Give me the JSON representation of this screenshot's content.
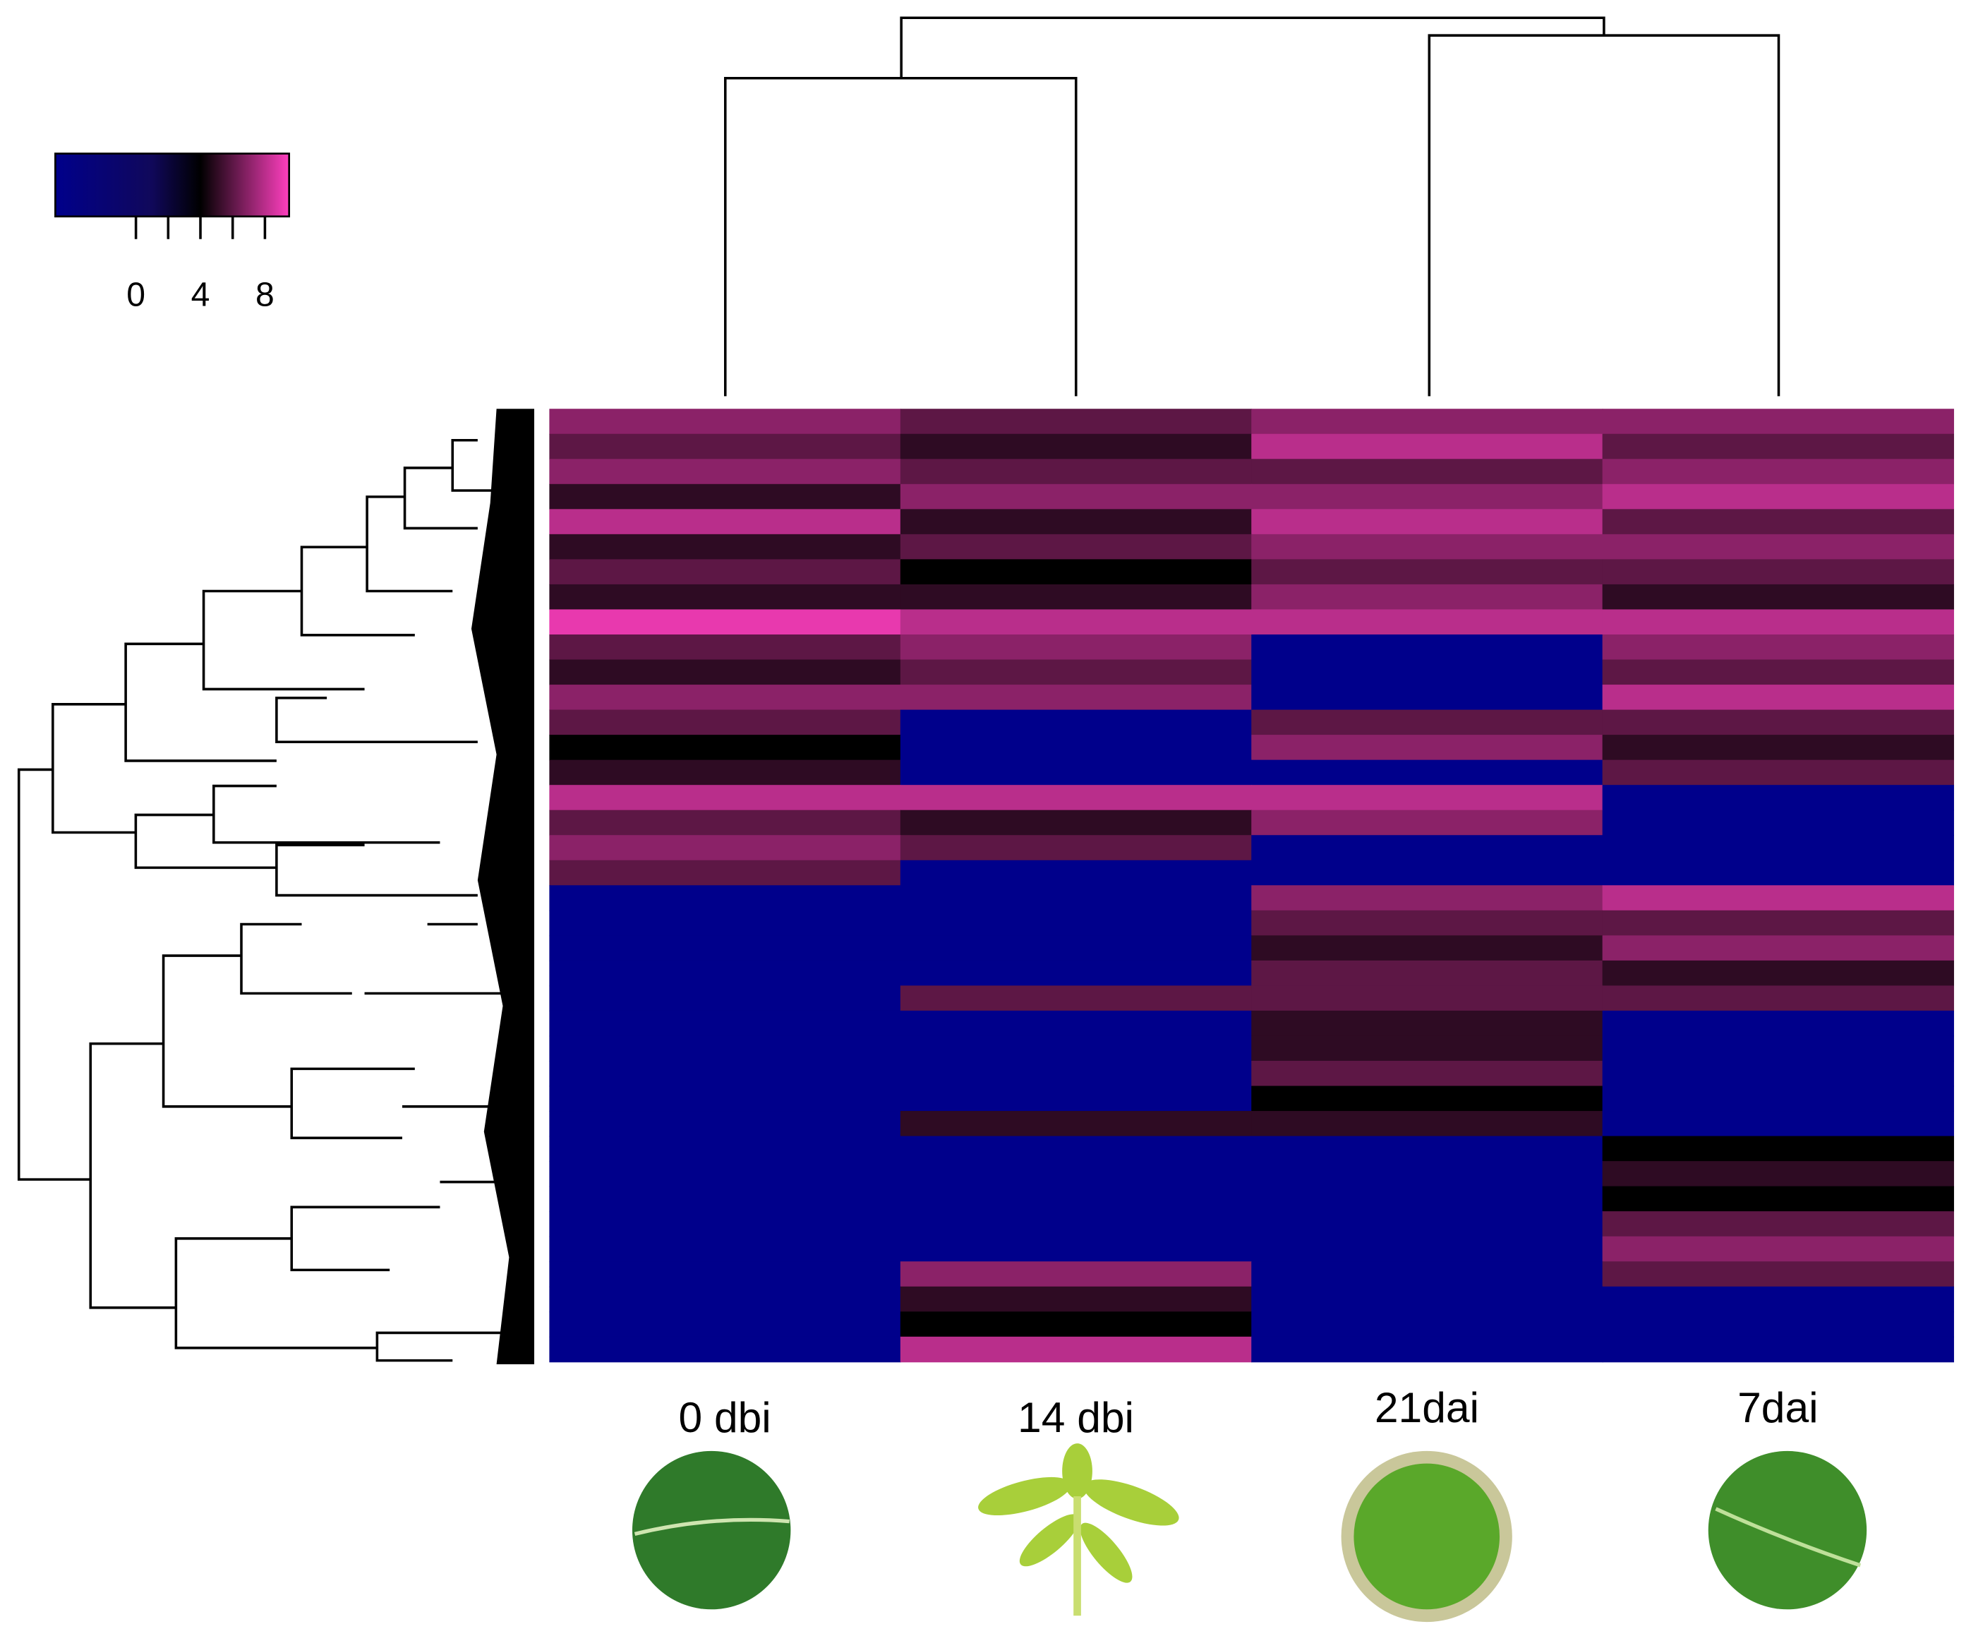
{
  "chart_data": {
    "type": "heatmap",
    "categories": [
      "0 dbi",
      "14 dbi",
      "21dai",
      "7dai"
    ],
    "values": [
      [
        7,
        6,
        7,
        7
      ],
      [
        6,
        5,
        8,
        6
      ],
      [
        7,
        6,
        6,
        7
      ],
      [
        5,
        7,
        7,
        8
      ],
      [
        8,
        5,
        8,
        6
      ],
      [
        5,
        6,
        7,
        7
      ],
      [
        6,
        4,
        6,
        6
      ],
      [
        5,
        5,
        7,
        5
      ],
      [
        9,
        8,
        8,
        8
      ],
      [
        6,
        7,
        -5,
        7
      ],
      [
        5,
        6,
        -5,
        6
      ],
      [
        7,
        7,
        -5,
        8
      ],
      [
        6,
        -5,
        6,
        6
      ],
      [
        4,
        -5,
        7,
        5
      ],
      [
        5,
        -5,
        -5,
        6
      ],
      [
        8,
        8,
        8,
        -5
      ],
      [
        6,
        5,
        7,
        -5
      ],
      [
        7,
        6,
        -5,
        -5
      ],
      [
        6,
        -5,
        -5,
        -5
      ],
      [
        -5,
        -5,
        7,
        8
      ],
      [
        -5,
        -5,
        6,
        6
      ],
      [
        -5,
        -5,
        5,
        7
      ],
      [
        -5,
        -5,
        6,
        5
      ],
      [
        -5,
        6,
        6,
        6
      ],
      [
        -5,
        -5,
        5,
        -5
      ],
      [
        -5,
        -5,
        5,
        -5
      ],
      [
        -5,
        -5,
        6,
        -5
      ],
      [
        -5,
        -5,
        4,
        -5
      ],
      [
        -5,
        5,
        5,
        -5
      ],
      [
        -5,
        -5,
        -5,
        4
      ],
      [
        -5,
        -5,
        -5,
        5
      ],
      [
        -5,
        -5,
        -5,
        4
      ],
      [
        -5,
        -5,
        -5,
        6
      ],
      [
        -5,
        -5,
        -5,
        7
      ],
      [
        -5,
        7,
        -5,
        6
      ],
      [
        -5,
        5,
        -5,
        -5
      ],
      [
        -5,
        4,
        -5,
        -5
      ],
      [
        -5,
        8,
        -5,
        -5
      ]
    ],
    "zlim": [
      -5,
      9.5
    ],
    "zticks": [
      0,
      4,
      8
    ],
    "colorscale": [
      {
        "value": -5,
        "color": "#00008b"
      },
      {
        "value": 1,
        "color": "#10085a"
      },
      {
        "value": 4,
        "color": "#000000"
      },
      {
        "value": 9.5,
        "color": "#ff3fbf"
      }
    ]
  }
}
